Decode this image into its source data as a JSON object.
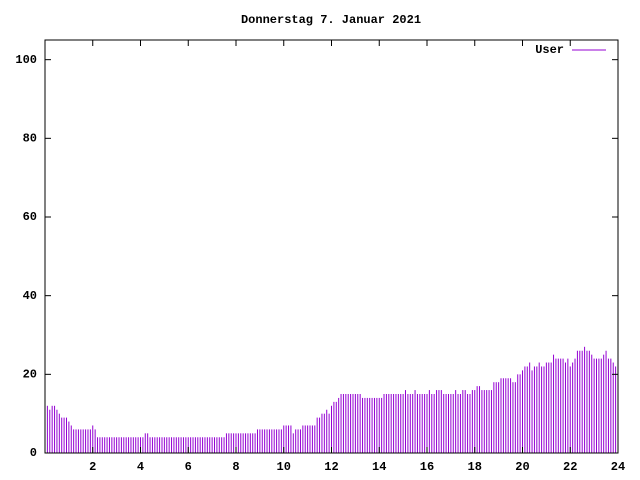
{
  "chart_data": {
    "type": "impulses",
    "title": "Donnerstag 7. Januar 2021",
    "xlim": [
      0,
      24
    ],
    "xticks": [
      2,
      4,
      6,
      8,
      10,
      12,
      14,
      16,
      18,
      20,
      22,
      24
    ],
    "ylim": [
      0,
      105
    ],
    "yticks": [
      0,
      20,
      40,
      60,
      80,
      100
    ],
    "legend": "top-right",
    "series": [
      {
        "name": "User",
        "color": "#9400d3",
        "x": [
          0.1,
          0.2,
          0.3,
          0.4,
          0.5,
          0.6,
          0.7,
          0.8,
          0.9,
          1.0,
          1.1,
          1.2,
          1.3,
          1.4,
          1.5,
          1.6,
          1.7,
          1.8,
          1.9,
          2.0,
          2.1,
          2.2,
          2.3,
          2.4,
          2.5,
          2.6,
          2.7,
          2.8,
          2.9,
          3.0,
          3.1,
          3.2,
          3.3,
          3.4,
          3.5,
          3.6,
          3.7,
          3.8,
          3.9,
          4.0,
          4.1,
          4.2,
          4.3,
          4.4,
          4.5,
          4.6,
          4.7,
          4.8,
          4.9,
          5.0,
          5.1,
          5.2,
          5.3,
          5.4,
          5.5,
          5.6,
          5.7,
          5.8,
          5.9,
          6.0,
          6.1,
          6.2,
          6.3,
          6.4,
          6.5,
          6.6,
          6.7,
          6.8,
          6.9,
          7.0,
          7.1,
          7.2,
          7.3,
          7.4,
          7.5,
          7.6,
          7.7,
          7.8,
          7.9,
          8.0,
          8.1,
          8.2,
          8.3,
          8.4,
          8.5,
          8.6,
          8.7,
          8.8,
          8.9,
          9.0,
          9.1,
          9.2,
          9.3,
          9.4,
          9.5,
          9.6,
          9.7,
          9.8,
          9.9,
          10.0,
          10.1,
          10.2,
          10.3,
          10.4,
          10.5,
          10.6,
          10.7,
          10.8,
          10.9,
          11.0,
          11.1,
          11.2,
          11.3,
          11.4,
          11.5,
          11.6,
          11.7,
          11.8,
          11.9,
          12.0,
          12.1,
          12.2,
          12.3,
          12.4,
          12.5,
          12.6,
          12.7,
          12.8,
          12.9,
          13.0,
          13.1,
          13.2,
          13.3,
          13.4,
          13.5,
          13.6,
          13.7,
          13.8,
          13.9,
          14.0,
          14.1,
          14.2,
          14.3,
          14.4,
          14.5,
          14.6,
          14.7,
          14.8,
          14.9,
          15.0,
          15.1,
          15.2,
          15.3,
          15.4,
          15.5,
          15.6,
          15.7,
          15.8,
          15.9,
          16.0,
          16.1,
          16.2,
          16.3,
          16.4,
          16.5,
          16.6,
          16.7,
          16.8,
          16.9,
          17.0,
          17.1,
          17.2,
          17.3,
          17.4,
          17.5,
          17.6,
          17.7,
          17.8,
          17.9,
          18.0,
          18.1,
          18.2,
          18.3,
          18.4,
          18.5,
          18.6,
          18.7,
          18.8,
          18.9,
          19.0,
          19.1,
          19.2,
          19.3,
          19.4,
          19.5,
          19.6,
          19.7,
          19.8,
          19.9,
          20.0,
          20.1,
          20.2,
          20.3,
          20.4,
          20.5,
          20.6,
          20.7,
          20.8,
          20.9,
          21.0,
          21.1,
          21.2,
          21.3,
          21.4,
          21.5,
          21.6,
          21.7,
          21.8,
          21.9,
          22.0,
          22.1,
          22.2,
          22.3,
          22.4,
          22.5,
          22.6,
          22.7,
          22.8,
          22.9,
          23.0,
          23.1,
          23.2,
          23.3,
          23.4,
          23.5,
          23.6,
          23.7,
          23.8,
          23.9,
          24.0
        ],
        "values": [
          12,
          11,
          12,
          12,
          11,
          10,
          9,
          9,
          9,
          8,
          7,
          6,
          6,
          6,
          6,
          6,
          6,
          6,
          6,
          7,
          6,
          4,
          4,
          4,
          4,
          4,
          4,
          4,
          4,
          4,
          4,
          4,
          4,
          4,
          4,
          4,
          4,
          4,
          4,
          4,
          4,
          5,
          5,
          4,
          4,
          4,
          4,
          4,
          4,
          4,
          4,
          4,
          4,
          4,
          4,
          4,
          4,
          4,
          4,
          4,
          4,
          4,
          4,
          4,
          4,
          4,
          4,
          4,
          4,
          4,
          4,
          4,
          4,
          4,
          4,
          5,
          5,
          5,
          5,
          5,
          5,
          5,
          5,
          5,
          5,
          5,
          5,
          5,
          6,
          6,
          6,
          6,
          6,
          6,
          6,
          6,
          6,
          6,
          6,
          7,
          7,
          7,
          7,
          5,
          6,
          6,
          6,
          7,
          7,
          7,
          7,
          7,
          7,
          9,
          9,
          10,
          10,
          11,
          10,
          12,
          13,
          13,
          14,
          15,
          15,
          15,
          15,
          15,
          15,
          15,
          15,
          15,
          14,
          14,
          14,
          14,
          14,
          14,
          14,
          14,
          14,
          15,
          15,
          15,
          15,
          15,
          15,
          15,
          15,
          15,
          16,
          15,
          15,
          15,
          16,
          15,
          15,
          15,
          15,
          15,
          16,
          15,
          15,
          16,
          16,
          16,
          15,
          15,
          15,
          15,
          15,
          16,
          15,
          15,
          16,
          16,
          15,
          15,
          16,
          16,
          17,
          17,
          16,
          16,
          16,
          16,
          16,
          18,
          18,
          18,
          19,
          19,
          19,
          19,
          19,
          18,
          18,
          20,
          20,
          21,
          22,
          22,
          23,
          21,
          22,
          22,
          23,
          22,
          22,
          23,
          23,
          23,
          25,
          24,
          24,
          24,
          24,
          23,
          24,
          22,
          23,
          24,
          26,
          26,
          26,
          27,
          26,
          26,
          25,
          24,
          24,
          24,
          24,
          25,
          26,
          24,
          24,
          23,
          22,
          20
        ]
      }
    ]
  }
}
